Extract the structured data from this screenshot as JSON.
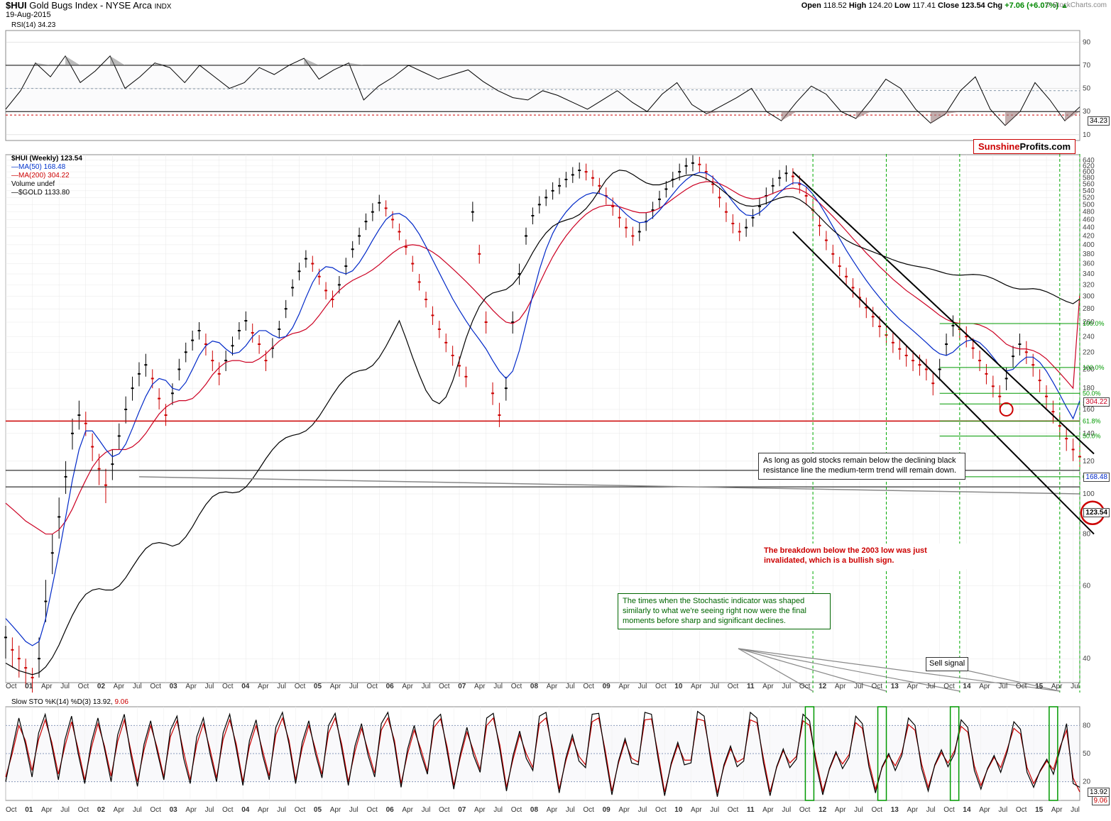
{
  "header": {
    "symbol": "$HUI",
    "name": "Gold Bugs Index - NYSE Arca",
    "type": "INDX",
    "date": "19-Aug-2015",
    "copyright": "© StockCharts.com"
  },
  "quote": {
    "open_lbl": "Open",
    "open": "118.52",
    "high_lbl": "High",
    "high": "124.20",
    "low_lbl": "Low",
    "low": "117.41",
    "close_lbl": "Close",
    "close": "123.54",
    "chg_lbl": "Chg",
    "chg": "+7.06 (+6.07%)",
    "arrow": "▲"
  },
  "watermark": {
    "a": "Sunshine",
    "b": "Profits.com"
  },
  "rsi_panel": {
    "label": "RSI(14)",
    "value": "34.23",
    "y_ticks": [
      10,
      30,
      50,
      70,
      90
    ],
    "upper_band": 70,
    "lower_band": 30,
    "lines": {
      "band": "#000000",
      "mid": "#8899aa",
      "fill_pos": "#6b6b6b",
      "fill_neg": "#8a5a5a",
      "series": "#000000",
      "dash": "#cc0000"
    },
    "series": [
      32,
      48,
      72,
      60,
      78,
      55,
      65,
      78,
      50,
      60,
      72,
      68,
      55,
      70,
      60,
      50,
      55,
      68,
      62,
      70,
      76,
      58,
      66,
      72,
      40,
      52,
      60,
      70,
      64,
      58,
      62,
      66,
      56,
      48,
      42,
      40,
      48,
      44,
      38,
      32,
      40,
      48,
      38,
      30,
      45,
      55,
      36,
      28,
      35,
      42,
      50,
      30,
      22,
      38,
      52,
      45,
      30,
      24,
      40,
      58,
      50,
      32,
      20,
      28,
      48,
      60,
      32,
      18,
      30,
      55,
      40,
      22,
      34
    ],
    "last_flag": "34.23"
  },
  "price_panel": {
    "labels": {
      "title": "$HUI (Weekly)",
      "title_val": "123.54",
      "ma50": "MA(50)",
      "ma50_val": "168.48",
      "ma200": "MA(200)",
      "ma200_val": "304.22",
      "vol": "Volume",
      "vol_val": "undef",
      "gold": "$GOLD",
      "gold_val": "1133.80"
    },
    "colors": {
      "price_up": "#000000",
      "price_dn": "#cc0000",
      "ma50": "#0028c8",
      "ma200": "#cc0022",
      "gold": "#000000",
      "trend": "#000000",
      "support": "#cc0000",
      "fib": "#009900",
      "vdash": "#00aa00",
      "circle": "#cc0000",
      "grid": "#e8e8e8"
    },
    "y_log_ticks": [
      40,
      60,
      80,
      100,
      120,
      140,
      160,
      180,
      200,
      220,
      240,
      260,
      280,
      300,
      320,
      340,
      360,
      380,
      400,
      420,
      440,
      460,
      480,
      500,
      520,
      540,
      560,
      580,
      600,
      620,
      640
    ],
    "x_labels": [
      "Oct",
      "01",
      "Apr",
      "Jul",
      "Oct",
      "02",
      "Apr",
      "Jul",
      "Oct",
      "03",
      "Apr",
      "Jul",
      "Oct",
      "04",
      "Apr",
      "Jul",
      "Oct",
      "05",
      "Apr",
      "Jul",
      "Oct",
      "06",
      "Apr",
      "Jul",
      "Oct",
      "07",
      "Apr",
      "Jul",
      "Oct",
      "08",
      "Apr",
      "Jul",
      "Oct",
      "09",
      "Apr",
      "Jul",
      "Oct",
      "10",
      "Apr",
      "Jul",
      "Oct",
      "11",
      "Apr",
      "Jul",
      "Oct",
      "12",
      "Apr",
      "Jul",
      "Oct",
      "13",
      "Apr",
      "Jul",
      "Oct",
      "14",
      "Apr",
      "Jul",
      "Oct",
      "15",
      "Apr",
      "Jul"
    ],
    "hui_close": [
      45,
      42,
      40,
      38,
      36,
      40,
      55,
      72,
      88,
      110,
      140,
      155,
      148,
      130,
      115,
      105,
      118,
      138,
      160,
      180,
      195,
      205,
      190,
      170,
      155,
      175,
      200,
      220,
      235,
      248,
      230,
      210,
      195,
      210,
      228,
      248,
      262,
      245,
      230,
      210,
      225,
      250,
      280,
      315,
      345,
      370,
      360,
      335,
      310,
      295,
      320,
      355,
      390,
      420,
      455,
      480,
      505,
      490,
      460,
      430,
      395,
      360,
      325,
      295,
      270,
      250,
      232,
      216,
      204,
      192,
      480,
      380,
      260,
      175,
      155,
      180,
      260,
      340,
      420,
      470,
      500,
      520,
      540,
      555,
      575,
      590,
      605,
      600,
      580,
      555,
      525,
      495,
      465,
      440,
      420,
      430,
      455,
      485,
      515,
      545,
      575,
      600,
      620,
      630,
      625,
      600,
      560,
      520,
      480,
      450,
      430,
      440,
      465,
      495,
      525,
      555,
      580,
      595,
      585,
      560,
      525,
      485,
      445,
      410,
      380,
      355,
      335,
      315,
      298,
      282,
      268,
      254,
      242,
      232,
      224,
      216,
      210,
      205,
      200,
      185,
      200,
      230,
      255,
      250,
      240,
      225,
      210,
      195,
      182,
      172,
      190,
      215,
      230,
      220,
      205,
      188,
      172,
      158,
      146,
      136,
      128,
      123
    ],
    "hui_high": [
      48,
      45,
      43,
      40,
      38,
      45,
      62,
      80,
      98,
      120,
      152,
      168,
      158,
      140,
      125,
      115,
      128,
      148,
      172,
      192,
      208,
      218,
      200,
      180,
      165,
      185,
      212,
      232,
      248,
      260,
      244,
      222,
      208,
      222,
      240,
      260,
      276,
      258,
      242,
      222,
      238,
      262,
      294,
      330,
      362,
      388,
      376,
      350,
      325,
      310,
      336,
      372,
      408,
      440,
      476,
      504,
      528,
      512,
      482,
      450,
      412,
      376,
      340,
      308,
      284,
      262,
      244,
      228,
      215,
      203,
      508,
      400,
      276,
      186,
      166,
      192,
      276,
      360,
      440,
      492,
      524,
      544,
      566,
      580,
      600,
      616,
      632,
      628,
      606,
      580,
      550,
      520,
      490,
      464,
      442,
      452,
      478,
      508,
      540,
      570,
      600,
      628,
      648,
      658,
      652,
      628,
      588,
      548,
      506,
      474,
      452,
      462,
      488,
      520,
      550,
      580,
      606,
      622,
      612,
      588,
      552,
      510,
      470,
      432,
      400,
      374,
      352,
      332,
      314,
      298,
      283,
      269,
      256,
      245,
      237,
      229,
      222,
      217,
      212,
      197,
      212,
      244,
      270,
      264,
      254,
      238,
      222,
      206,
      193,
      183,
      202,
      228,
      244,
      234,
      218,
      200,
      183,
      168,
      155,
      145,
      136,
      131
    ],
    "hui_low": [
      40,
      38,
      36,
      34,
      32,
      36,
      49,
      64,
      78,
      100,
      128,
      143,
      138,
      120,
      105,
      95,
      108,
      128,
      148,
      168,
      182,
      192,
      180,
      160,
      146,
      164,
      188,
      208,
      222,
      236,
      216,
      198,
      183,
      198,
      216,
      236,
      248,
      232,
      218,
      198,
      213,
      238,
      266,
      300,
      328,
      352,
      344,
      320,
      295,
      282,
      305,
      338,
      372,
      400,
      434,
      456,
      482,
      468,
      438,
      410,
      378,
      344,
      310,
      282,
      256,
      238,
      220,
      204,
      192,
      181,
      455,
      360,
      244,
      164,
      145,
      168,
      244,
      320,
      400,
      448,
      476,
      496,
      514,
      530,
      550,
      564,
      578,
      572,
      554,
      530,
      500,
      470,
      440,
      416,
      398,
      408,
      432,
      462,
      490,
      520,
      550,
      572,
      592,
      602,
      598,
      572,
      532,
      492,
      454,
      426,
      408,
      418,
      442,
      470,
      500,
      530,
      554,
      568,
      558,
      532,
      498,
      460,
      420,
      388,
      360,
      336,
      318,
      298,
      282,
      266,
      253,
      239,
      228,
      219,
      211,
      203,
      198,
      193,
      188,
      173,
      188,
      216,
      240,
      236,
      226,
      212,
      198,
      184,
      171,
      161,
      178,
      202,
      216,
      206,
      192,
      176,
      161,
      148,
      137,
      127,
      120,
      115
    ],
    "ma50": [
      50,
      48,
      46,
      44,
      43,
      44,
      50,
      60,
      72,
      88,
      108,
      128,
      142,
      142,
      135,
      128,
      123,
      125,
      132,
      144,
      158,
      172,
      184,
      190,
      188,
      180,
      178,
      186,
      200,
      216,
      228,
      234,
      232,
      224,
      218,
      220,
      228,
      240,
      248,
      248,
      242,
      238,
      240,
      252,
      272,
      298,
      324,
      344,
      354,
      352,
      344,
      340,
      346,
      362,
      384,
      410,
      436,
      460,
      474,
      476,
      466,
      448,
      424,
      396,
      368,
      342,
      318,
      296,
      278,
      262,
      248,
      236,
      224,
      210,
      198,
      190,
      198,
      222,
      258,
      302,
      348,
      390,
      426,
      456,
      480,
      500,
      516,
      528,
      534,
      532,
      524,
      510,
      492,
      474,
      460,
      452,
      454,
      466,
      484,
      506,
      530,
      554,
      574,
      590,
      598,
      596,
      582,
      560,
      534,
      508,
      486,
      472,
      470,
      478,
      494,
      514,
      534,
      552,
      564,
      564,
      552,
      530,
      502,
      472,
      442,
      414,
      388,
      366,
      346,
      328,
      312,
      298,
      285,
      274,
      264,
      256,
      248,
      240,
      232,
      224,
      218,
      216,
      220,
      228,
      234,
      236,
      232,
      224,
      214,
      204,
      198,
      200,
      208,
      214,
      214,
      208,
      198,
      186,
      174,
      162,
      152,
      168
    ],
    "ma200": [
      95,
      92,
      89,
      86,
      84,
      82,
      80,
      80,
      82,
      86,
      92,
      100,
      108,
      116,
      122,
      126,
      128,
      128,
      128,
      130,
      134,
      140,
      148,
      156,
      162,
      166,
      168,
      168,
      170,
      176,
      184,
      194,
      202,
      208,
      210,
      210,
      208,
      208,
      212,
      218,
      226,
      234,
      240,
      244,
      246,
      250,
      258,
      270,
      284,
      298,
      310,
      320,
      328,
      334,
      340,
      348,
      358,
      370,
      382,
      392,
      398,
      400,
      398,
      392,
      384,
      374,
      362,
      350,
      338,
      326,
      314,
      302,
      290,
      278,
      268,
      260,
      258,
      264,
      278,
      298,
      322,
      348,
      374,
      398,
      420,
      440,
      458,
      474,
      486,
      494,
      498,
      498,
      494,
      488,
      482,
      478,
      478,
      482,
      490,
      502,
      516,
      530,
      544,
      556,
      564,
      568,
      568,
      562,
      552,
      540,
      528,
      520,
      516,
      518,
      524,
      532,
      540,
      546,
      548,
      544,
      534,
      520,
      504,
      486,
      468,
      450,
      432,
      414,
      398,
      382,
      368,
      354,
      342,
      330,
      320,
      310,
      302,
      294,
      286,
      278,
      270,
      264,
      260,
      258,
      258,
      258,
      256,
      252,
      246,
      238,
      230,
      226,
      224,
      224,
      222,
      218,
      212,
      204,
      196,
      188,
      180,
      304
    ],
    "gold": [
      270,
      266,
      262,
      260,
      258,
      260,
      266,
      276,
      290,
      308,
      326,
      342,
      354,
      360,
      362,
      360,
      360,
      366,
      378,
      394,
      410,
      424,
      432,
      434,
      432,
      428,
      432,
      444,
      462,
      484,
      504,
      520,
      528,
      530,
      528,
      530,
      540,
      558,
      580,
      604,
      626,
      644,
      656,
      662,
      666,
      674,
      690,
      714,
      744,
      776,
      806,
      830,
      846,
      854,
      858,
      872,
      900,
      940,
      988,
      1040,
      970,
      900,
      840,
      790,
      760,
      750,
      770,
      820,
      890,
      970,
      1040,
      1100,
      1140,
      1160,
      1168,
      1176,
      1200,
      1240,
      1296,
      1360,
      1420,
      1470,
      1508,
      1532,
      1546,
      1558,
      1580,
      1618,
      1672,
      1740,
      1810,
      1860,
      1882,
      1876,
      1850,
      1818,
      1790,
      1776,
      1776,
      1790,
      1810,
      1830,
      1844,
      1848,
      1840,
      1820,
      1790,
      1754,
      1716,
      1680,
      1652,
      1636,
      1632,
      1638,
      1652,
      1670,
      1686,
      1696,
      1694,
      1676,
      1646,
      1608,
      1566,
      1524,
      1486,
      1454,
      1428,
      1408,
      1392,
      1378,
      1364,
      1350,
      1336,
      1322,
      1310,
      1300,
      1292,
      1286,
      1280,
      1272,
      1262,
      1252,
      1246,
      1244,
      1246,
      1248,
      1246,
      1240,
      1228,
      1212,
      1196,
      1184,
      1178,
      1178,
      1180,
      1176,
      1166,
      1152,
      1136,
      1122,
      1112,
      1133
    ],
    "fib_levels": [
      {
        "lbl": "100.0%",
        "y": 258
      },
      {
        "lbl": "100.0%",
        "y": 202
      },
      {
        "lbl": "50.0%",
        "y": 175
      },
      {
        "lbl": "38.2%",
        "y": 165
      },
      {
        "lbl": "61.8%",
        "y": 150
      },
      {
        "lbl": "50.0%",
        "y": 138
      },
      {
        "lbl": "0.0%",
        "y": 110
      }
    ],
    "flags": {
      "ma200": "304.22",
      "ma50": "168.48",
      "price": "123.54"
    },
    "annot_trend": "As long as gold stocks remain below the declining black resistance line the medium-term trend will remain down.",
    "annot_breakdown": "The breakdown below the 2003 low was just invalidated, which is a bullish sign.",
    "support_level": 150
  },
  "stoch_panel": {
    "label": "Slow STO %K(14) %D(3)",
    "k": "13.92",
    "d": "9.06",
    "y_ticks": [
      20,
      50,
      80
    ],
    "colors": {
      "k": "#000000",
      "d": "#cc0000",
      "band": "#8899bb",
      "box": "#009900"
    },
    "k_series": [
      20,
      55,
      88,
      60,
      25,
      72,
      92,
      58,
      22,
      65,
      90,
      50,
      18,
      62,
      88,
      55,
      20,
      70,
      92,
      48,
      15,
      60,
      85,
      52,
      22,
      75,
      90,
      45,
      18,
      68,
      88,
      50,
      20,
      72,
      92,
      55,
      16,
      64,
      86,
      48,
      22,
      78,
      94,
      60,
      18,
      62,
      85,
      50,
      24,
      80,
      93,
      55,
      16,
      58,
      82,
      48,
      25,
      82,
      94,
      60,
      14,
      55,
      80,
      50,
      28,
      85,
      92,
      52,
      12,
      50,
      78,
      48,
      30,
      88,
      93,
      54,
      10,
      48,
      74,
      45,
      32,
      90,
      94,
      50,
      8,
      45,
      70,
      42,
      35,
      92,
      93,
      48,
      6,
      42,
      66,
      40,
      38,
      94,
      92,
      45,
      5,
      40,
      62,
      38,
      40,
      95,
      90,
      42,
      4,
      38,
      58,
      36,
      42,
      94,
      88,
      40,
      5,
      36,
      55,
      35,
      44,
      92,
      85,
      38,
      6,
      34,
      52,
      34,
      46,
      90,
      82,
      36,
      8,
      36,
      50,
      32,
      48,
      88,
      80,
      34,
      10,
      38,
      54,
      36,
      50,
      86,
      78,
      32,
      12,
      34,
      48,
      30,
      52,
      84,
      76,
      30,
      14,
      32,
      44,
      28,
      54,
      82,
      18,
      14
    ],
    "d_series": [
      25,
      50,
      80,
      64,
      32,
      65,
      86,
      62,
      28,
      58,
      84,
      55,
      22,
      56,
      82,
      58,
      26,
      63,
      86,
      53,
      20,
      54,
      80,
      56,
      25,
      68,
      85,
      52,
      22,
      60,
      82,
      55,
      24,
      65,
      86,
      60,
      20,
      58,
      80,
      53,
      26,
      70,
      88,
      64,
      22,
      56,
      80,
      55,
      28,
      72,
      88,
      60,
      20,
      52,
      77,
      53,
      29,
      75,
      88,
      64,
      18,
      50,
      75,
      55,
      31,
      78,
      87,
      57,
      16,
      46,
      73,
      53,
      33,
      80,
      88,
      59,
      14,
      44,
      70,
      50,
      35,
      82,
      88,
      55,
      12,
      42,
      66,
      47,
      38,
      84,
      88,
      53,
      10,
      40,
      63,
      45,
      41,
      86,
      87,
      50,
      9,
      38,
      59,
      43,
      43,
      87,
      85,
      47,
      8,
      36,
      55,
      41,
      45,
      86,
      83,
      45,
      9,
      35,
      53,
      40,
      47,
      85,
      80,
      43,
      10,
      33,
      50,
      39,
      49,
      83,
      77,
      41,
      12,
      35,
      48,
      37,
      51,
      81,
      75,
      39,
      14,
      37,
      51,
      40,
      53,
      79,
      73,
      37,
      16,
      33,
      46,
      35,
      55,
      77,
      71,
      35,
      18,
      31,
      42,
      33,
      57,
      75,
      24,
      9
    ],
    "annot_stoch": "The times when the Stochastic indicator was shaped similarly to what we're seeing right now were the final moments before sharp and significant declines.",
    "sell_signal_lbl": "Sell signal",
    "flags": {
      "k": "13.92",
      "d": "9.06"
    }
  }
}
